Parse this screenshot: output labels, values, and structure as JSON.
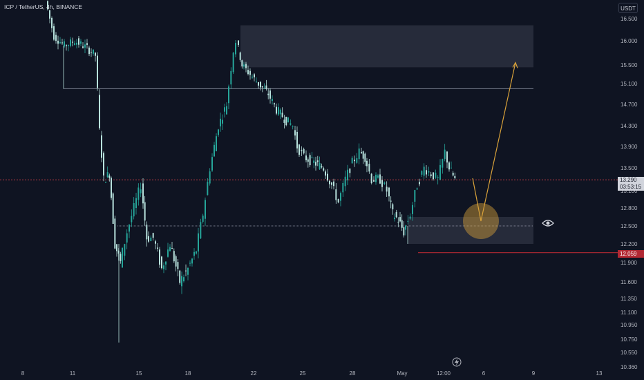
{
  "header": {
    "symbol_label": "ICP / TetherUS, 4h, BINANCE",
    "currency": "USDT"
  },
  "price_tags": {
    "last_price": "13.290",
    "countdown": "03:53:15",
    "level_price": "12.059"
  },
  "colors": {
    "background": "#0f1422",
    "up": "#26a69a",
    "down": "#b7e1dc",
    "axis_text": "#b2b5be",
    "zone_fill": "#2a2f3e",
    "projection": "#d9a23a",
    "level_line": "#b22833",
    "last_price_line": "#e0454d"
  },
  "icons": {
    "eye": "eye-icon",
    "flash": "flash-icon"
  },
  "chart_data": {
    "type": "candlestick",
    "title": "ICP / TetherUS, 4h, BINANCE",
    "y_axis": {
      "ticks": [
        "16.500",
        "16.000",
        "15.500",
        "15.100",
        "14.700",
        "14.300",
        "13.900",
        "13.500",
        "13.100",
        "12.800",
        "12.500",
        "12.200",
        "11.900",
        "11.600",
        "11.350",
        "11.100",
        "10.950",
        "10.750",
        "10.550",
        "10.360"
      ]
    },
    "x_axis": {
      "ticks": [
        "8",
        "11",
        "15",
        "18",
        "22",
        "25",
        "28",
        "May",
        "12:00",
        "6",
        "9",
        "13"
      ]
    },
    "last_price": 13.29,
    "annotations": {
      "supply_zone": {
        "from_label": "22",
        "to_label": "9",
        "low": 15.45,
        "high": 16.35
      },
      "demand_zone": {
        "from_label": "May",
        "to_label": "9",
        "low": 12.2,
        "high": 12.65
      },
      "level_line": 12.059,
      "horizontal_support_1": 15.0,
      "horizontal_support_2": 12.5,
      "projection": {
        "path": [
          "13.29 -> 12.5 dip",
          "-> 15.55 rally"
        ]
      }
    },
    "series_sample": [
      {
        "t": "8",
        "o": 16.9,
        "h": 17.0,
        "l": 16.6,
        "c": 16.7
      },
      {
        "t": "11",
        "o": 15.9,
        "h": 16.3,
        "l": 15.5,
        "c": 15.6
      },
      {
        "t": "15",
        "o": 12.6,
        "h": 13.0,
        "l": 12.0,
        "c": 12.4
      },
      {
        "t": "18",
        "o": 12.0,
        "h": 12.3,
        "l": 11.5,
        "c": 11.8
      },
      {
        "t": "22",
        "o": 15.8,
        "h": 16.3,
        "l": 15.2,
        "c": 15.4
      },
      {
        "t": "25",
        "o": 14.0,
        "h": 14.2,
        "l": 13.5,
        "c": 13.6
      },
      {
        "t": "28",
        "o": 13.2,
        "h": 13.7,
        "l": 12.9,
        "c": 13.0
      },
      {
        "t": "May",
        "o": 12.6,
        "h": 13.0,
        "l": 12.2,
        "c": 12.8
      },
      {
        "t": "12:00",
        "o": 13.5,
        "h": 13.8,
        "l": 13.2,
        "c": 13.29
      }
    ]
  }
}
